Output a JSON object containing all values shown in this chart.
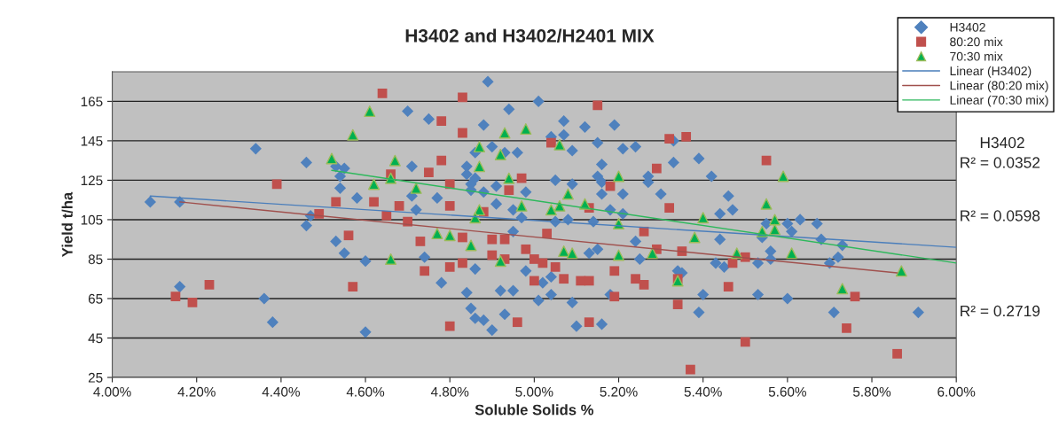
{
  "chart_data": {
    "type": "scatter",
    "title": "H3402 and H3402/H2401 MIX",
    "xlabel": "Soluble Solids %",
    "ylabel": "Yield t/ha",
    "xlim": [
      4.0,
      6.0
    ],
    "xticks": [
      {
        "value": 4.0,
        "label": "4.00%"
      },
      {
        "value": 4.2,
        "label": "4.20%"
      },
      {
        "value": 4.4,
        "label": "4.40%"
      },
      {
        "value": 4.6,
        "label": "4.60%"
      },
      {
        "value": 4.8,
        "label": "4.80%"
      },
      {
        "value": 5.0,
        "label": "5.00%"
      },
      {
        "value": 5.2,
        "label": "5.20%"
      },
      {
        "value": 5.4,
        "label": "5.40%"
      },
      {
        "value": 5.6,
        "label": "5.60%"
      },
      {
        "value": 5.8,
        "label": "5.80%"
      },
      {
        "value": 6.0,
        "label": "6.00%"
      }
    ],
    "ylim": [
      25,
      180
    ],
    "yticks": [
      25,
      45,
      65,
      85,
      105,
      125,
      145,
      165
    ],
    "grid": "y",
    "legend": "top right",
    "annotations": [
      "H3402",
      "R² = 0.0352",
      "R² = 0.0598",
      "R² = 0.2719"
    ],
    "series": [
      {
        "name": "H3402",
        "type": "scatter",
        "marker": "diamond",
        "color": "#4f81bd",
        "x": [
          4.09,
          4.16,
          4.34,
          4.46,
          4.53,
          4.55,
          4.54,
          4.54,
          4.58,
          4.46,
          4.47,
          4.39,
          4.16,
          4.36,
          4.38,
          4.53,
          4.55,
          4.6,
          4.6,
          4.89,
          4.7,
          4.75,
          4.94,
          5.01,
          4.88,
          5.07,
          5.12,
          5.19,
          5.04,
          5.07,
          4.9,
          4.86,
          4.93,
          4.96,
          5.09,
          5.15,
          5.21,
          5.24,
          5.16,
          5.33,
          5.33,
          4.71,
          4.84,
          4.84,
          4.86,
          4.85,
          4.85,
          4.88,
          4.91,
          4.98,
          5.05,
          5.09,
          5.15,
          5.16,
          5.27,
          5.27,
          5.16,
          5.21,
          5.3,
          4.77,
          4.71,
          4.72,
          4.91,
          4.95,
          4.97,
          5.18,
          5.21,
          5.05,
          5.08,
          5.14,
          5.39,
          5.42,
          5.46,
          5.47,
          5.44,
          5.55,
          5.6,
          5.63,
          5.67,
          4.74,
          4.78,
          4.84,
          4.86,
          4.85,
          4.86,
          4.88,
          4.9,
          4.92,
          4.93,
          4.95,
          4.98,
          5.01,
          5.04,
          5.09,
          5.1,
          5.16,
          5.04,
          5.02,
          5.13,
          5.15,
          5.25,
          5.24,
          5.18,
          4.95,
          5.34,
          5.44,
          5.43,
          5.45,
          5.53,
          5.56,
          5.56,
          5.54,
          5.61,
          5.68,
          5.73,
          5.72,
          5.7,
          5.35,
          5.4,
          5.39,
          5.53,
          5.6,
          5.71,
          5.91
        ],
        "values": [
          114,
          114,
          141,
          134,
          132,
          131,
          127,
          121,
          116,
          102,
          107,
          null,
          71,
          65,
          53,
          94,
          88,
          84,
          48,
          175,
          160,
          156,
          161,
          165,
          153,
          155,
          152,
          153,
          147,
          148,
          142,
          139,
          139,
          139,
          140,
          144,
          141,
          142,
          133,
          134,
          145,
          132,
          132,
          128,
          126,
          123,
          120,
          119,
          122,
          119,
          125,
          123,
          127,
          124,
          127,
          124,
          118,
          118,
          118,
          116,
          117,
          110,
          113,
          110,
          106,
          110,
          108,
          104,
          105,
          104,
          136,
          127,
          117,
          110,
          108,
          103,
          103,
          105,
          103,
          86,
          73,
          68,
          80,
          60,
          55,
          54,
          49,
          69,
          57,
          69,
          79,
          64,
          67,
          63,
          51,
          52,
          76,
          73,
          88,
          90,
          85,
          94,
          67,
          99,
          79,
          95,
          83,
          81,
          83,
          89,
          85,
          96,
          99,
          95,
          92,
          86,
          83,
          78,
          67,
          58,
          67,
          65,
          58,
          58
        ]
      },
      {
        "name": "80:20 mix",
        "type": "scatter",
        "marker": "square",
        "color": "#c0504d",
        "x": [
          4.64,
          4.39,
          4.53,
          4.49,
          4.62,
          4.66,
          4.65,
          4.15,
          4.19,
          4.23,
          4.56,
          4.57,
          4.83,
          5.15,
          4.78,
          4.83,
          5.04,
          5.32,
          5.36,
          5.55,
          4.78,
          4.75,
          4.8,
          4.97,
          4.94,
          5.18,
          5.29,
          4.8,
          4.88,
          5.13,
          5.32,
          4.68,
          4.7,
          4.73,
          4.74,
          4.8,
          4.83,
          4.8,
          4.83,
          4.9,
          4.93,
          4.9,
          4.93,
          4.98,
          5.0,
          5.03,
          5.02,
          5.05,
          5.0,
          5.07,
          5.11,
          5.13,
          4.96,
          5.13,
          5.19,
          5.19,
          5.24,
          5.26,
          5.26,
          5.29,
          5.34,
          5.34,
          5.35,
          5.47,
          5.5,
          5.46,
          5.76,
          5.74,
          5.5,
          5.86,
          5.37
        ],
        "values": [
          169,
          123,
          114,
          108,
          114,
          128,
          107,
          66,
          63,
          72,
          97,
          71,
          167,
          163,
          155,
          149,
          144,
          146,
          147,
          135,
          135,
          129,
          123,
          126,
          120,
          122,
          131,
          112,
          109,
          111,
          111,
          112,
          104,
          94,
          79,
          81,
          83,
          51,
          96,
          95,
          95,
          87,
          85,
          90,
          85,
          98,
          83,
          81,
          74,
          75,
          74,
          74,
          53,
          53,
          79,
          66,
          75,
          72,
          99,
          90,
          75,
          62,
          89,
          83,
          86,
          71,
          66,
          50,
          43,
          37,
          29
        ]
      },
      {
        "name": "70:30 mix",
        "type": "scatter",
        "marker": "triangle",
        "color": "#00b050",
        "x": [
          4.61,
          4.57,
          4.52,
          4.62,
          4.66,
          4.67,
          4.66,
          4.93,
          4.98,
          4.87,
          4.92,
          5.06,
          4.87,
          4.94,
          4.72,
          5.2,
          5.08,
          4.97,
          5.04,
          5.06,
          5.12,
          4.87,
          4.86,
          5.2,
          5.59,
          5.55,
          5.4,
          5.57,
          4.77,
          4.8,
          4.85,
          4.92,
          5.07,
          5.09,
          5.2,
          5.28,
          5.34,
          5.38,
          5.48,
          5.61,
          5.87,
          5.73,
          5.54,
          5.57
        ],
        "values": [
          160,
          148,
          136,
          123,
          126,
          135,
          85,
          149,
          151,
          142,
          138,
          143,
          132,
          126,
          121,
          127,
          118,
          112,
          110,
          112,
          113,
          110,
          106,
          103,
          127,
          113,
          106,
          105,
          98,
          97,
          92,
          84,
          89,
          88,
          87,
          88,
          74,
          96,
          88,
          88,
          79,
          70,
          99,
          100
        ]
      },
      {
        "name": "Linear (H3402)",
        "type": "line",
        "marker": "none",
        "color": "#4a7ebb",
        "x": [
          4.09,
          6.0
        ],
        "values": [
          117,
          91
        ]
      },
      {
        "name": "Linear (80:20 mix)",
        "type": "line",
        "marker": "none",
        "color": "#a0504d",
        "x": [
          4.16,
          5.86
        ],
        "values": [
          114,
          78
        ]
      },
      {
        "name": "Linear (70:30 mix)",
        "type": "line",
        "marker": "none",
        "color": "#2eb85c",
        "x": [
          4.52,
          6.0
        ],
        "values": [
          130,
          83
        ]
      }
    ]
  }
}
